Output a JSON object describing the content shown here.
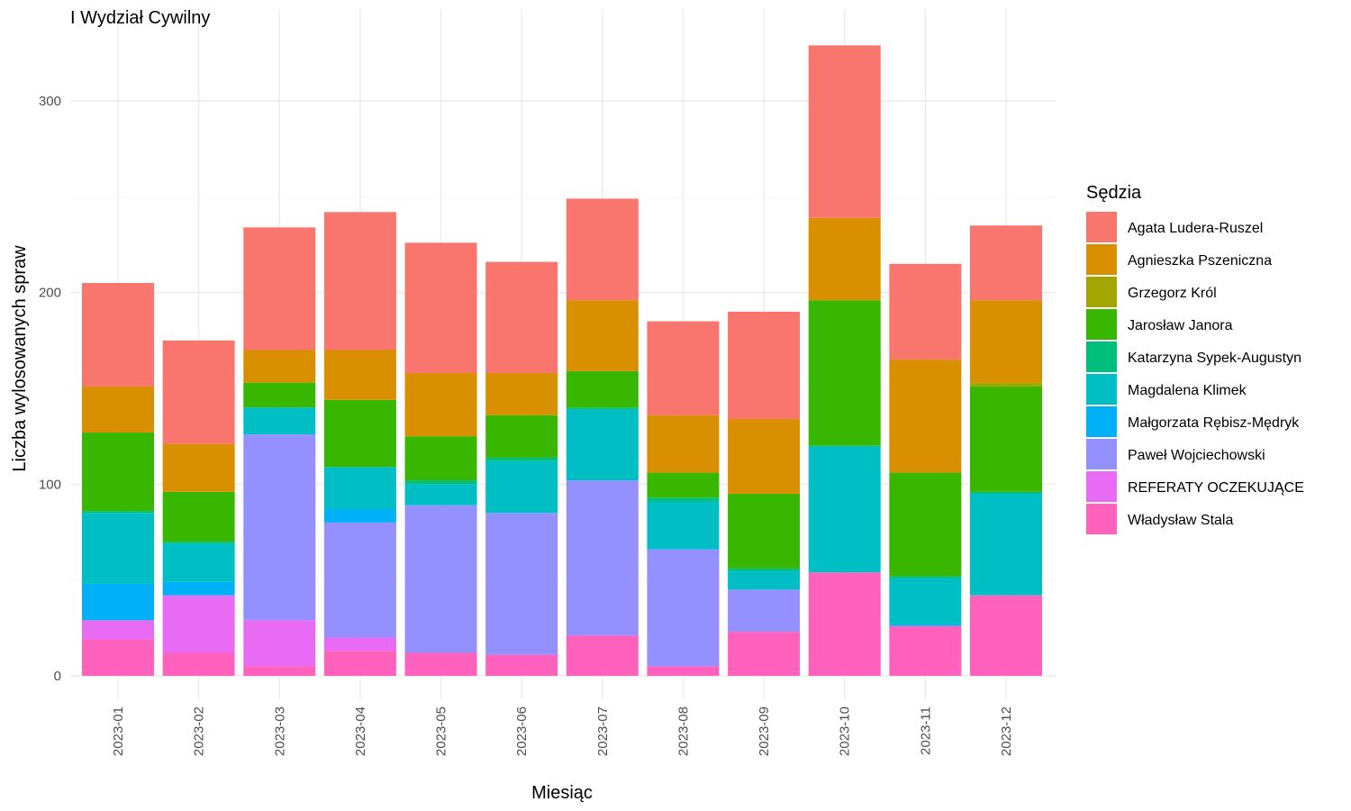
{
  "chart_data": {
    "type": "bar",
    "stacked": true,
    "title": "I Wydział Cywilny",
    "xlabel": "Miesiąc",
    "ylabel": "Liczba wylosowanych spraw",
    "ylim": [
      0,
      330
    ],
    "yticks": [
      0,
      100,
      200,
      300
    ],
    "grid": true,
    "legend_position": "right",
    "legend_title": "Sędzia",
    "categories": [
      "2023-01",
      "2023-02",
      "2023-03",
      "2023-04",
      "2023-05",
      "2023-06",
      "2023-07",
      "2023-08",
      "2023-09",
      "2023-10",
      "2023-11",
      "2023-12"
    ],
    "series": [
      {
        "name": "Agata Ludera-Ruszel",
        "color": "#F8766D",
        "values": [
          54,
          54,
          64,
          72,
          68,
          58,
          53,
          49,
          56,
          90,
          50,
          39
        ]
      },
      {
        "name": "Agnieszka Pszeniczna",
        "color": "#D89000",
        "values": [
          24,
          25,
          17,
          26,
          33,
          22,
          37,
          30,
          39,
          43,
          59,
          43
        ]
      },
      {
        "name": "Grzegorz Król",
        "color": "#A3A500",
        "values": [
          0,
          0,
          0,
          0,
          0,
          0,
          0,
          0,
          0,
          0,
          0,
          2
        ]
      },
      {
        "name": "Jarosław Janora",
        "color": "#39B600",
        "values": [
          41,
          26,
          13,
          35,
          23,
          22,
          19,
          13,
          39,
          76,
          54,
          55
        ]
      },
      {
        "name": "Katarzyna Sypek-Augustyn",
        "color": "#00BF7D",
        "values": [
          1,
          1,
          0,
          0,
          2,
          2,
          1,
          2,
          1,
          0,
          1,
          1
        ]
      },
      {
        "name": "Magdalena Klimek",
        "color": "#00BFC4",
        "values": [
          37,
          20,
          14,
          22,
          11,
          27,
          37,
          25,
          10,
          66,
          24,
          53
        ]
      },
      {
        "name": "Małgorzata Rębisz-Mędryk",
        "color": "#00B0F6",
        "values": [
          19,
          7,
          0,
          7,
          0,
          0,
          0,
          0,
          0,
          0,
          1,
          0
        ]
      },
      {
        "name": "Paweł Wojciechowski",
        "color": "#9590FF",
        "values": [
          0,
          0,
          97,
          60,
          77,
          74,
          81,
          61,
          22,
          0,
          0,
          0
        ]
      },
      {
        "name": "REFERATY OCZEKUJĄCE",
        "color": "#E76BF3",
        "values": [
          10,
          30,
          24,
          7,
          0,
          0,
          0,
          0,
          0,
          0,
          0,
          0
        ]
      },
      {
        "name": "Władysław Stala",
        "color": "#FF62BC",
        "values": [
          19,
          12,
          5,
          13,
          12,
          11,
          21,
          5,
          23,
          54,
          26,
          42
        ]
      }
    ]
  }
}
